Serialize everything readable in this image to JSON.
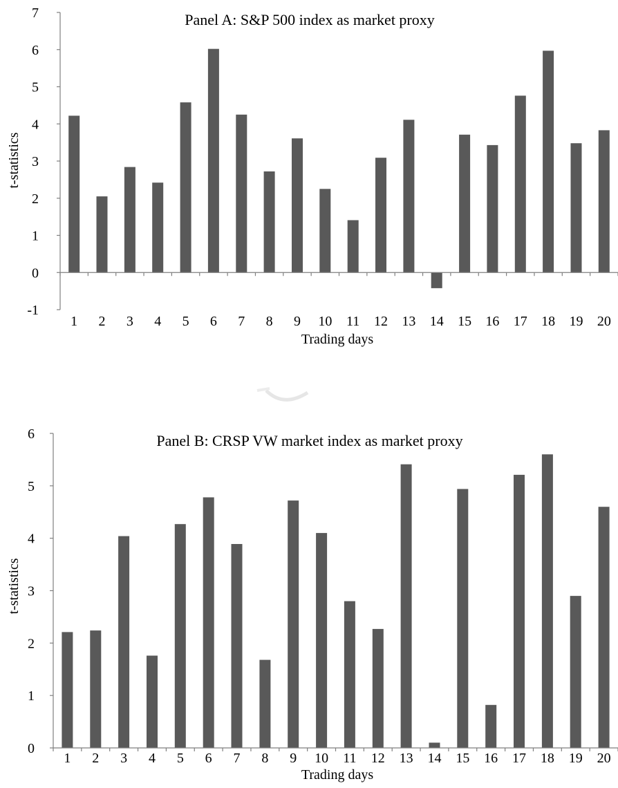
{
  "chart_data": [
    {
      "type": "bar",
      "title": "Panel A: S&P 500 index as market proxy",
      "xlabel": "Trading days",
      "ylabel": "t-statistics",
      "ylim": [
        -1,
        7
      ],
      "yticks": [
        -1,
        0,
        1,
        2,
        3,
        4,
        5,
        6,
        7
      ],
      "categories": [
        "1",
        "2",
        "3",
        "4",
        "5",
        "6",
        "7",
        "8",
        "9",
        "10",
        "11",
        "12",
        "13",
        "14",
        "15",
        "16",
        "17",
        "18",
        "19",
        "20"
      ],
      "values": [
        4.22,
        2.05,
        2.84,
        2.42,
        4.58,
        6.02,
        4.25,
        2.72,
        3.61,
        2.25,
        1.41,
        3.09,
        4.11,
        -0.42,
        3.71,
        3.43,
        4.76,
        5.97,
        3.48,
        3.83
      ],
      "bar_color": "#595959",
      "grid": false
    },
    {
      "type": "bar",
      "title": "Panel B: CRSP VW market index as market proxy",
      "xlabel": "Trading days",
      "ylabel": "t-statistics",
      "ylim": [
        0,
        6
      ],
      "yticks": [
        0,
        1,
        2,
        3,
        4,
        5,
        6
      ],
      "categories": [
        "1",
        "2",
        "3",
        "4",
        "5",
        "6",
        "7",
        "8",
        "9",
        "10",
        "11",
        "12",
        "13",
        "14",
        "15",
        "16",
        "17",
        "18",
        "19",
        "20"
      ],
      "values": [
        2.21,
        2.24,
        4.04,
        1.76,
        4.27,
        4.78,
        3.89,
        1.68,
        4.72,
        4.1,
        2.8,
        2.27,
        5.41,
        0.1,
        4.94,
        0.82,
        5.21,
        5.6,
        2.9,
        4.6
      ],
      "bar_color": "#595959",
      "grid": false
    }
  ]
}
